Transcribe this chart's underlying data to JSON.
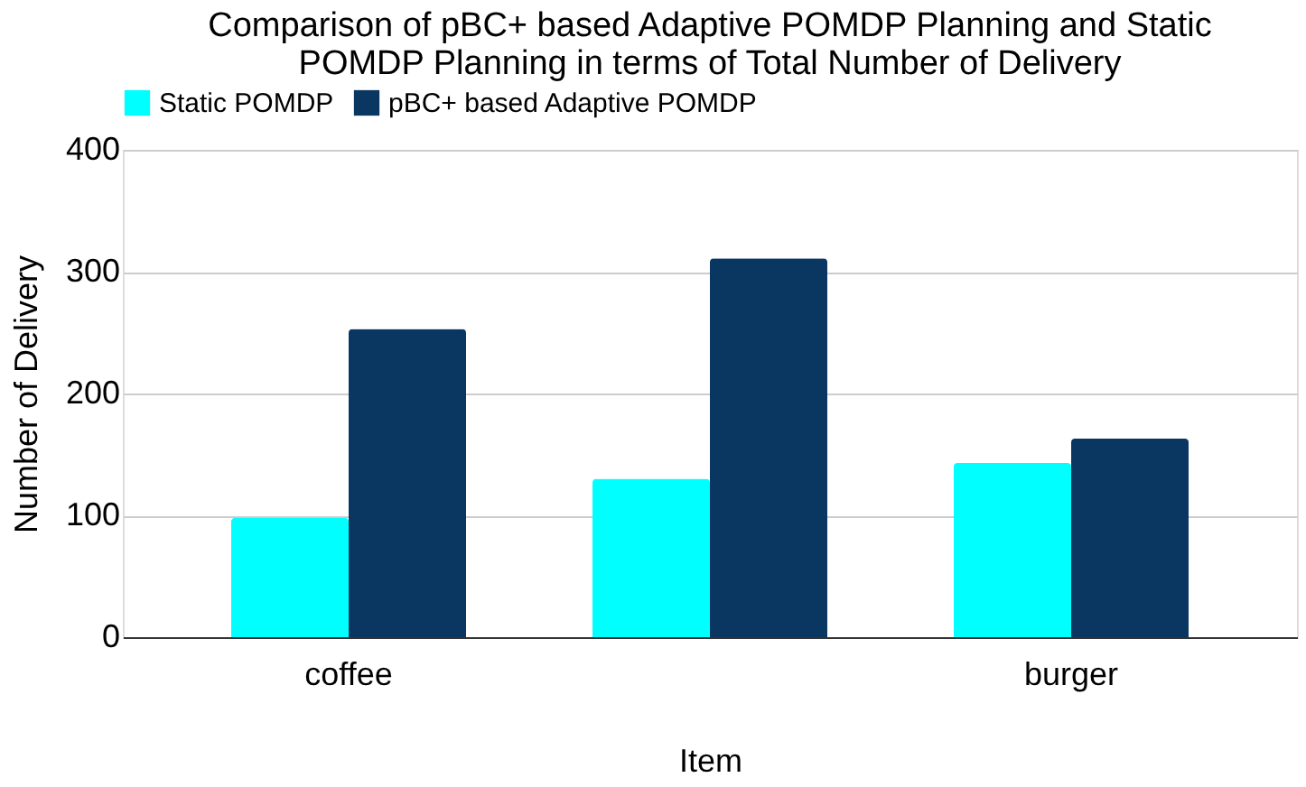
{
  "chart_data": {
    "type": "bar",
    "title": "Comparison of pBC+ based Adaptive POMDP Planning and Static POMDP Planning in terms of Total Number of Delivery",
    "xlabel": "Item",
    "ylabel": "Number of Delivery",
    "categories": [
      "coffee",
      null,
      "burger"
    ],
    "series": [
      {
        "name": "Static POMDP",
        "color": "#00ffff",
        "values": [
          98,
          130,
          143
        ]
      },
      {
        "name": "pBC+ based Adaptive POMDP",
        "color": "#0a3761",
        "values": [
          253,
          311,
          163
        ]
      }
    ],
    "ylim": [
      0,
      400
    ],
    "yticks": [
      0,
      100,
      200,
      300,
      400
    ],
    "grid": "y",
    "legend": "top"
  }
}
